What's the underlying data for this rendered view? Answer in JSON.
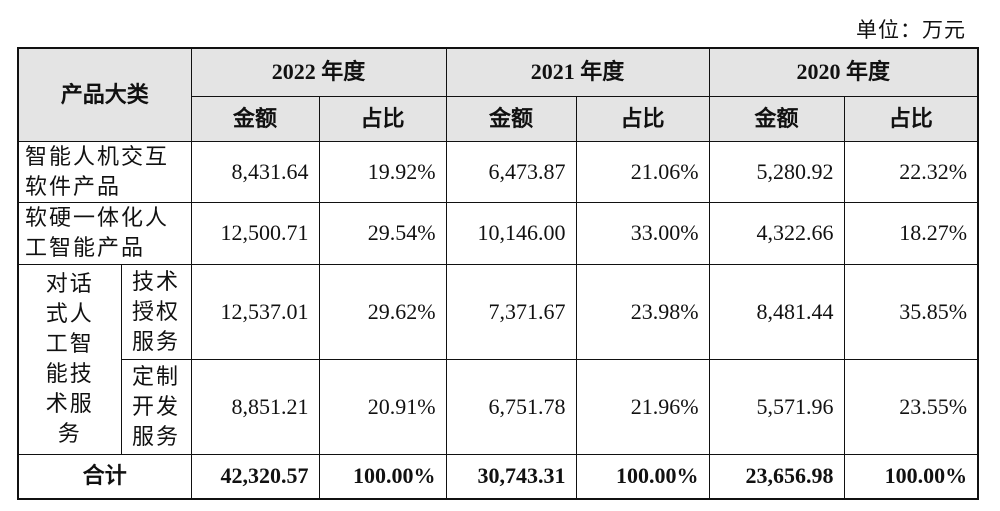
{
  "unit": "单位：万元",
  "table": {
    "header": {
      "category": "产品大类",
      "years": [
        "2022 年度",
        "2021 年度",
        "2020 年度"
      ],
      "subheaders": [
        "金额",
        "占比",
        "金额",
        "占比",
        "金额",
        "占比"
      ]
    },
    "rows": [
      {
        "category": "智能人机交互软件产品",
        "cells": [
          "8,431.64",
          "19.92%",
          "6,473.87",
          "21.06%",
          "5,280.92",
          "22.32%"
        ]
      },
      {
        "category": "软硬一体化人工智能产品",
        "cells": [
          "12,500.71",
          "29.54%",
          "10,146.00",
          "33.00%",
          "4,322.66",
          "18.27%"
        ]
      }
    ],
    "group": {
      "label": "对话式人工智能技术服务",
      "rows": [
        {
          "category": "技术授权服务",
          "cells": [
            "12,537.01",
            "29.62%",
            "7,371.67",
            "23.98%",
            "8,481.44",
            "35.85%"
          ]
        },
        {
          "category": "定制开发服务",
          "cells": [
            "8,851.21",
            "20.91%",
            "6,751.78",
            "21.96%",
            "5,571.96",
            "23.55%"
          ]
        }
      ]
    },
    "total": {
      "label": "合计",
      "cells": [
        "42,320.57",
        "100.00%",
        "30,743.31",
        "100.00%",
        "23,656.98",
        "100.00%"
      ]
    }
  }
}
